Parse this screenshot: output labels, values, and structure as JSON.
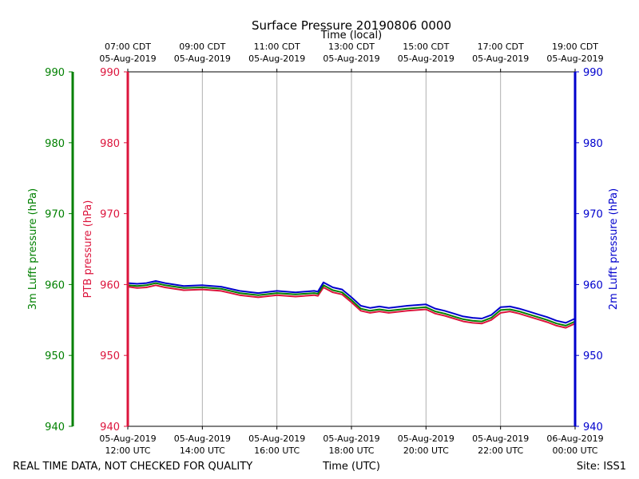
{
  "chart_data": {
    "type": "line",
    "title": "Surface Pressure 20190806 0000",
    "top_axis_label": "Time (local)",
    "xlabel": "Time (UTC)",
    "x_range_utc_hours": [
      12,
      24
    ],
    "top_ticks": [
      {
        "time": "07:00 CDT",
        "date": "05-Aug-2019"
      },
      {
        "time": "09:00 CDT",
        "date": "05-Aug-2019"
      },
      {
        "time": "11:00 CDT",
        "date": "05-Aug-2019"
      },
      {
        "time": "13:00 CDT",
        "date": "05-Aug-2019"
      },
      {
        "time": "15:00 CDT",
        "date": "05-Aug-2019"
      },
      {
        "time": "17:00 CDT",
        "date": "05-Aug-2019"
      },
      {
        "time": "19:00 CDT",
        "date": "05-Aug-2019"
      }
    ],
    "bottom_ticks": [
      {
        "date": "05-Aug-2019",
        "time": "12:00 UTC"
      },
      {
        "date": "05-Aug-2019",
        "time": "14:00 UTC"
      },
      {
        "date": "05-Aug-2019",
        "time": "16:00 UTC"
      },
      {
        "date": "05-Aug-2019",
        "time": "18:00 UTC"
      },
      {
        "date": "05-Aug-2019",
        "time": "20:00 UTC"
      },
      {
        "date": "05-Aug-2019",
        "time": "22:00 UTC"
      },
      {
        "date": "06-Aug-2019",
        "time": "00:00 UTC"
      }
    ],
    "y_axes": [
      {
        "label": "3m Lufft pressure (hPa)",
        "color": "#008000",
        "ylim": [
          940,
          990
        ],
        "ticks": [
          940,
          950,
          960,
          970,
          980,
          990
        ]
      },
      {
        "label": "PTB pressure (hPa)",
        "color": "#dc143c",
        "ylim": [
          940,
          990
        ],
        "ticks": [
          940,
          950,
          960,
          970,
          980,
          990
        ]
      },
      {
        "label": "2m Lufft pressure (hPa)",
        "color": "#0000cd",
        "ylim": [
          940,
          990
        ],
        "ticks": [
          940,
          950,
          960,
          970,
          980,
          990
        ]
      }
    ],
    "x_hours_utc": [
      12.0,
      12.25,
      12.5,
      12.75,
      13.0,
      13.5,
      14.0,
      14.5,
      15.0,
      15.5,
      16.0,
      16.5,
      17.0,
      17.1,
      17.25,
      17.5,
      17.75,
      18.0,
      18.25,
      18.5,
      18.75,
      19.0,
      19.5,
      20.0,
      20.25,
      20.5,
      20.75,
      21.0,
      21.25,
      21.5,
      21.75,
      22.0,
      22.25,
      22.5,
      22.75,
      23.0,
      23.25,
      23.5,
      23.75,
      24.0
    ],
    "series": [
      {
        "name": "PTB pressure (hPa)",
        "color": "#dc143c",
        "values": [
          959.7,
          959.5,
          959.6,
          959.9,
          959.6,
          959.2,
          959.3,
          959.1,
          958.5,
          958.2,
          958.5,
          958.3,
          958.5,
          958.4,
          959.6,
          958.9,
          958.6,
          957.5,
          956.3,
          956.0,
          956.2,
          956.0,
          956.3,
          956.5,
          955.9,
          955.6,
          955.2,
          954.8,
          954.6,
          954.5,
          955.0,
          956.0,
          956.2,
          955.9,
          955.5,
          955.1,
          954.7,
          954.2,
          953.9,
          954.5
        ]
      },
      {
        "name": "3m Lufft pressure (hPa)",
        "color": "#008000",
        "values": [
          959.9,
          959.8,
          959.9,
          960.2,
          959.9,
          959.5,
          959.6,
          959.4,
          958.8,
          958.5,
          958.8,
          958.6,
          958.8,
          958.7,
          959.9,
          959.2,
          958.9,
          957.8,
          956.6,
          956.3,
          956.5,
          956.3,
          956.6,
          956.8,
          956.2,
          955.9,
          955.5,
          955.1,
          954.9,
          954.8,
          955.3,
          956.4,
          956.5,
          956.2,
          955.8,
          955.4,
          955.0,
          954.5,
          954.2,
          954.8
        ]
      },
      {
        "name": "2m Lufft pressure (hPa)",
        "color": "#0000cd",
        "values": [
          960.2,
          960.1,
          960.2,
          960.5,
          960.2,
          959.8,
          959.9,
          959.7,
          959.1,
          958.8,
          959.1,
          958.9,
          959.1,
          959.0,
          960.3,
          959.6,
          959.3,
          958.2,
          957.0,
          956.7,
          956.9,
          956.7,
          957.0,
          957.2,
          956.6,
          956.3,
          955.9,
          955.5,
          955.3,
          955.2,
          955.7,
          956.8,
          956.9,
          956.6,
          956.2,
          955.8,
          955.4,
          954.9,
          954.6,
          955.2
        ]
      }
    ],
    "grid": "vertical",
    "footer_left": "REAL TIME DATA, NOT CHECKED FOR QUALITY",
    "footer_right": "Site: ISS1"
  }
}
